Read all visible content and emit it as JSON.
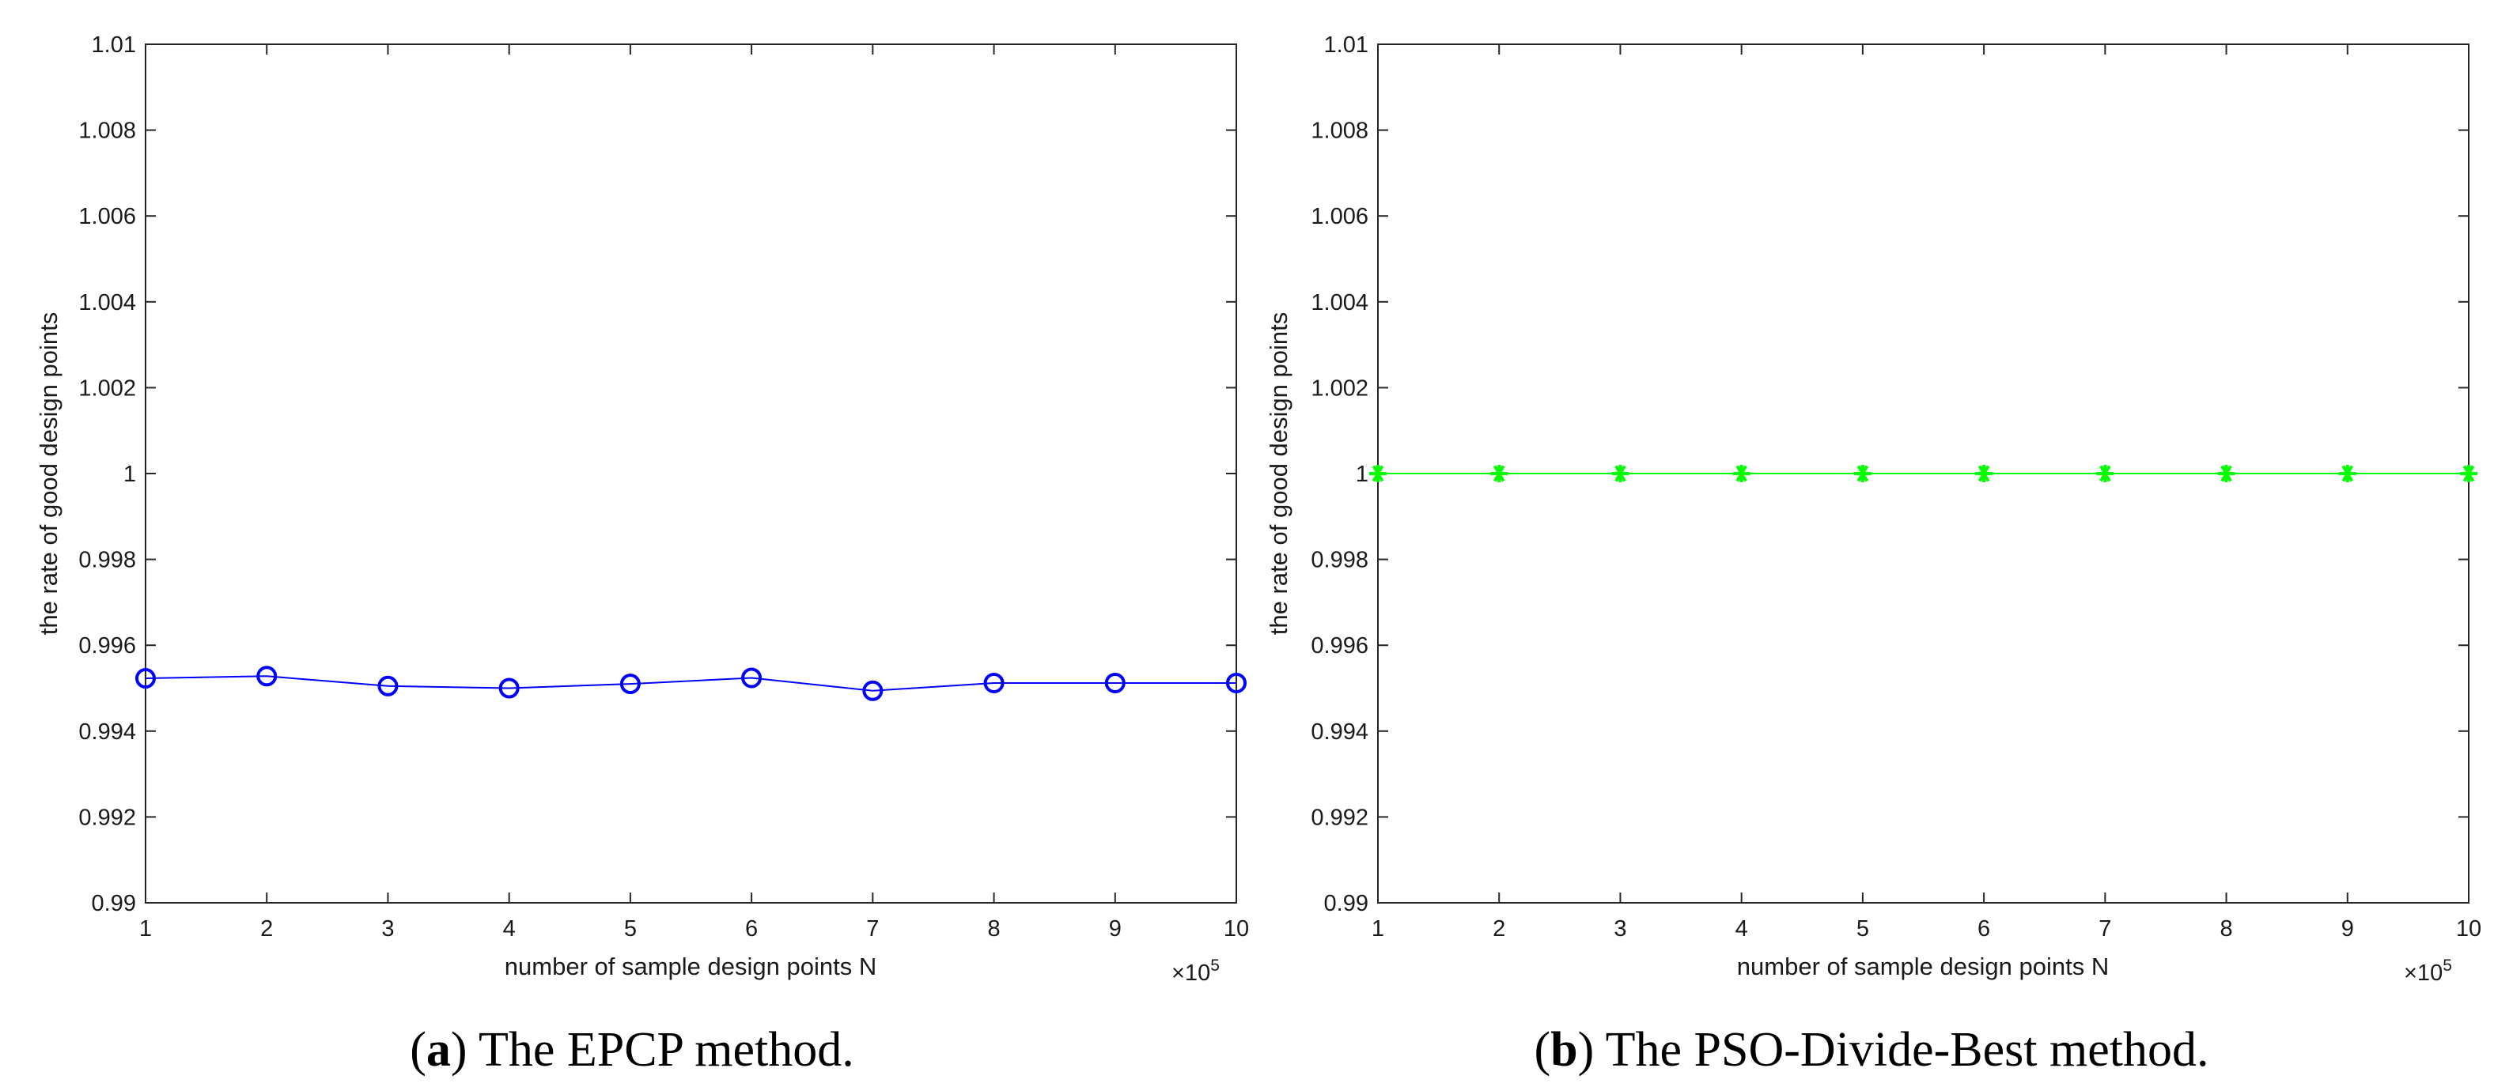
{
  "figure_captions": [
    {
      "label": "a",
      "text": " The EPCP method."
    },
    {
      "label": "b",
      "text": " The PSO-Divide-Best method."
    }
  ],
  "chart_data": [
    {
      "type": "line",
      "title": "",
      "xlabel": "number of sample design points N",
      "ylabel": "the rate of good design points",
      "x_multiplier_text": "×10",
      "x_multiplier_exp": "5",
      "xlim": [
        1,
        10
      ],
      "ylim": [
        0.99,
        1.01
      ],
      "x_ticks": [
        "1",
        "2",
        "3",
        "4",
        "5",
        "6",
        "7",
        "8",
        "9",
        "10"
      ],
      "y_ticks": [
        "0.99",
        "0.992",
        "0.994",
        "0.996",
        "0.998",
        "1",
        "1.002",
        "1.004",
        "1.006",
        "1.008",
        "1.01"
      ],
      "series": [
        {
          "name": "EPCP",
          "color": "#0000ff",
          "marker": "circle",
          "x": [
            1,
            2,
            3,
            4,
            5,
            6,
            7,
            8,
            9,
            10
          ],
          "values": [
            0.99523,
            0.99528,
            0.99505,
            0.995,
            0.9951,
            0.99524,
            0.99494,
            0.99512,
            0.99512,
            0.99512
          ]
        }
      ]
    },
    {
      "type": "line",
      "title": "",
      "xlabel": "number of sample design points N",
      "ylabel": "the rate of good design points",
      "x_multiplier_text": "×10",
      "x_multiplier_exp": "5",
      "xlim": [
        1,
        10
      ],
      "ylim": [
        0.99,
        1.01
      ],
      "x_ticks": [
        "1",
        "2",
        "3",
        "4",
        "5",
        "6",
        "7",
        "8",
        "9",
        "10"
      ],
      "y_ticks": [
        "0.99",
        "0.992",
        "0.994",
        "0.996",
        "0.998",
        "1",
        "1.002",
        "1.004",
        "1.006",
        "1.008",
        "1.01"
      ],
      "series": [
        {
          "name": "PSO-Divide-Best",
          "color": "#00ff00",
          "marker": "asterisk",
          "x": [
            1,
            2,
            3,
            4,
            5,
            6,
            7,
            8,
            9,
            10
          ],
          "values": [
            1,
            1,
            1,
            1,
            1,
            1,
            1,
            1,
            1,
            1
          ]
        }
      ]
    }
  ]
}
